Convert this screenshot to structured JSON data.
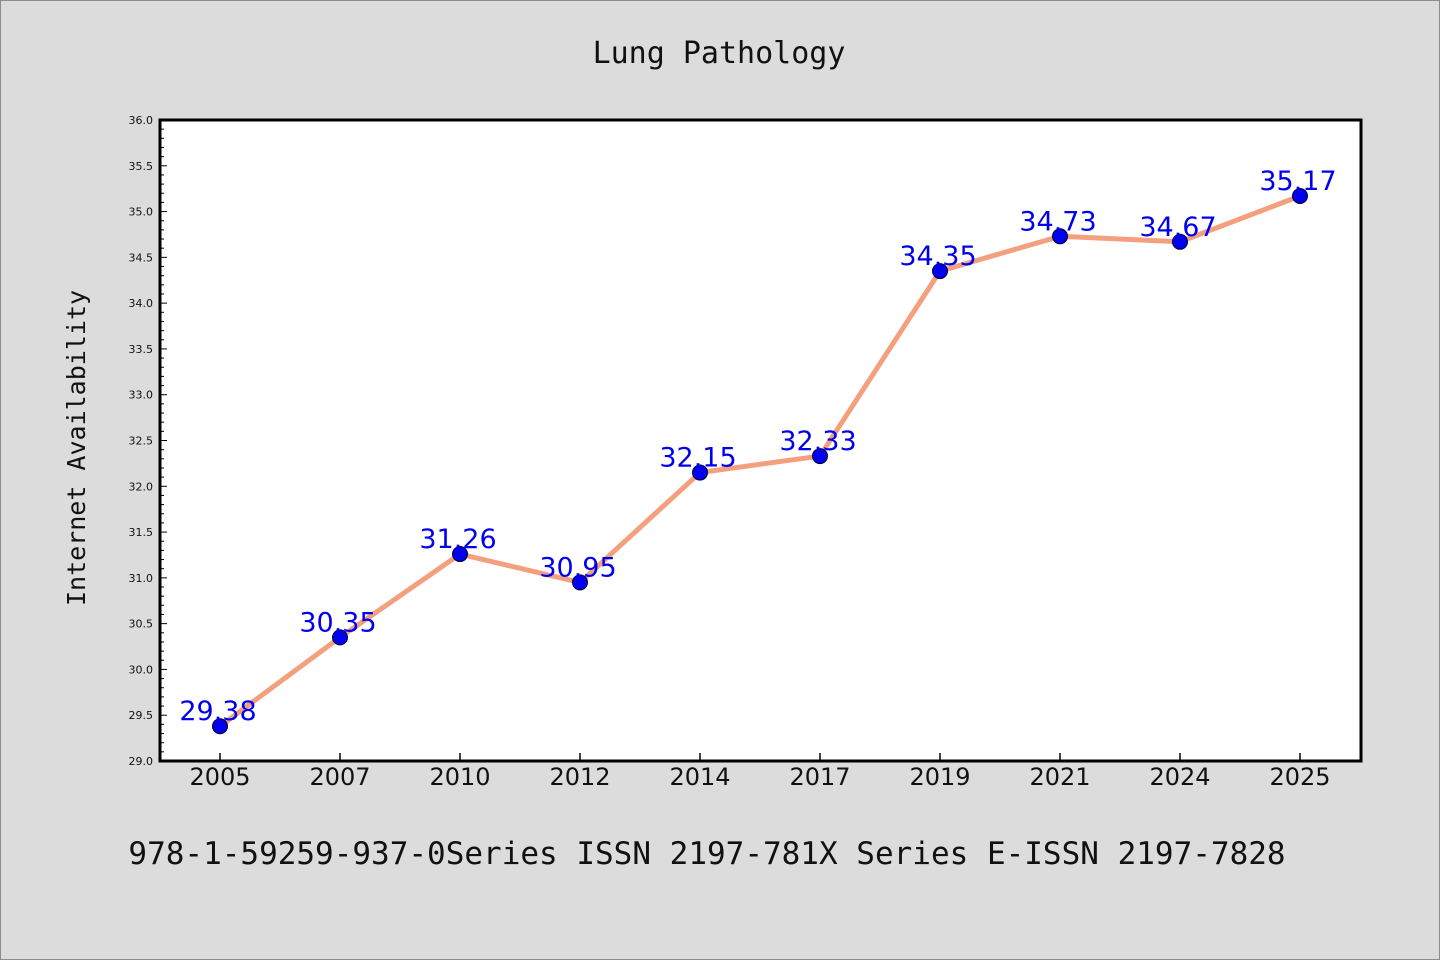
{
  "chart_data": {
    "type": "line",
    "title": "Lung Pathology",
    "xlabel": "",
    "ylabel": "Internet Availability",
    "categories": [
      "2005",
      "2007",
      "2010",
      "2012",
      "2014",
      "2017",
      "2019",
      "2021",
      "2024",
      "2025"
    ],
    "series": [
      {
        "values": [
          29.38,
          30.35,
          31.26,
          30.95,
          32.15,
          32.33,
          34.35,
          34.73,
          34.67,
          35.17
        ],
        "labels": [
          "29.38",
          "30.35",
          "31.26",
          "30.95",
          "32.15",
          "32.33",
          "34.35",
          "34.73",
          "34.67",
          "35.17"
        ],
        "line_color": "#f4a07e",
        "marker_color": "#0000ee"
      }
    ],
    "ylim": [
      29.0,
      36.0
    ],
    "yticks": [
      29.0,
      29.5,
      30.0,
      30.5,
      31.0,
      31.5,
      32.0,
      32.5,
      33.0,
      33.5,
      34.0,
      34.5,
      35.0,
      35.5,
      36.0
    ],
    "ytick_labels": [
      "29.0",
      "29.5",
      "30.0",
      "30.5",
      "31.0",
      "31.5",
      "32.0",
      "32.5",
      "33.0",
      "33.5",
      "34.0",
      "34.5",
      "35.0",
      "35.5",
      "36.0"
    ],
    "grid": false,
    "legend": "none"
  },
  "caption": "978-1-59259-937-0Series ISSN 2197-781X Series E-ISSN 2197-7828",
  "colors": {
    "background": "#dcdcdc",
    "plot_area": "#ffffff",
    "axis": "#000000"
  }
}
